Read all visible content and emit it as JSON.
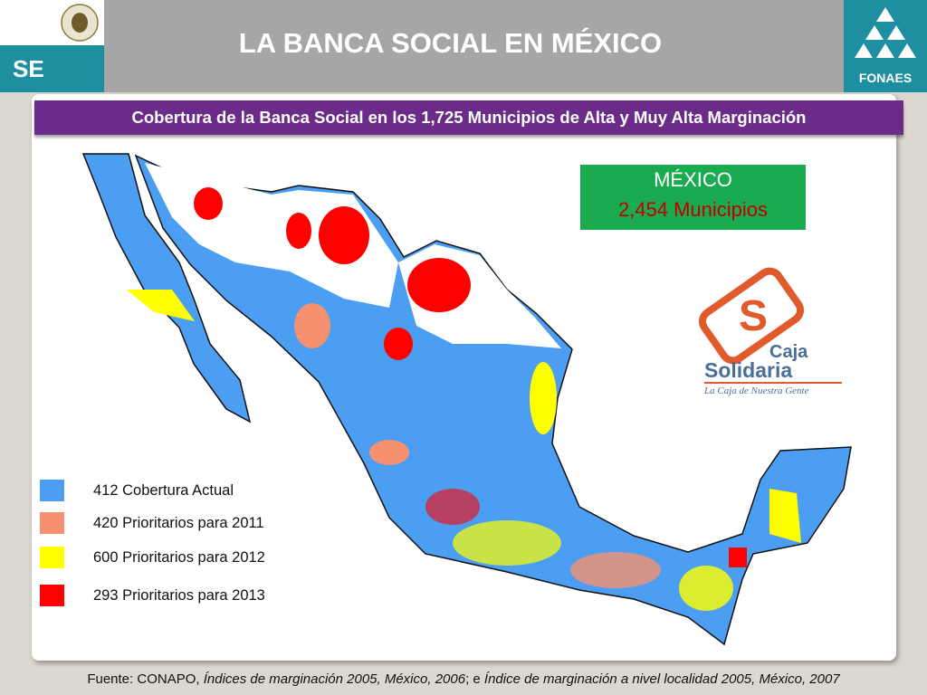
{
  "header": {
    "left_logo": "SE",
    "title": "LA BANCA SOCIAL EN MÉXICO",
    "right_logo": "FONAES"
  },
  "subtitle": "Cobertura de la Banca Social en los 1,725 Municipios de Alta y Muy Alta Marginación",
  "country_box": {
    "name": "MÉXICO",
    "count": "2,454 Municipios"
  },
  "caja_logo": {
    "line1": "Caja",
    "line2": "Solidaria",
    "tagline": "La Caja de Nuestra Gente"
  },
  "legend": [
    {
      "label": "412  Cobertura Actual",
      "color": "#4b9ef2"
    },
    {
      "label": "420 Prioritarios para 2011",
      "color": "#f59171"
    },
    {
      "label": "600 Prioritarios para 2012",
      "color": "#ffff00"
    },
    {
      "label": "293 Prioritarios para 2013",
      "color": "#ff0000"
    }
  ],
  "source": [
    {
      "text": "Fuente: CONAPO, ",
      "italic": false
    },
    {
      "text": "Índices de marginación 2005, México, 2006",
      "italic": true
    },
    {
      "text": "; e ",
      "italic": false
    },
    {
      "text": "Índice de marginación a nivel localidad 2005, México, 2007",
      "italic": true
    }
  ]
}
